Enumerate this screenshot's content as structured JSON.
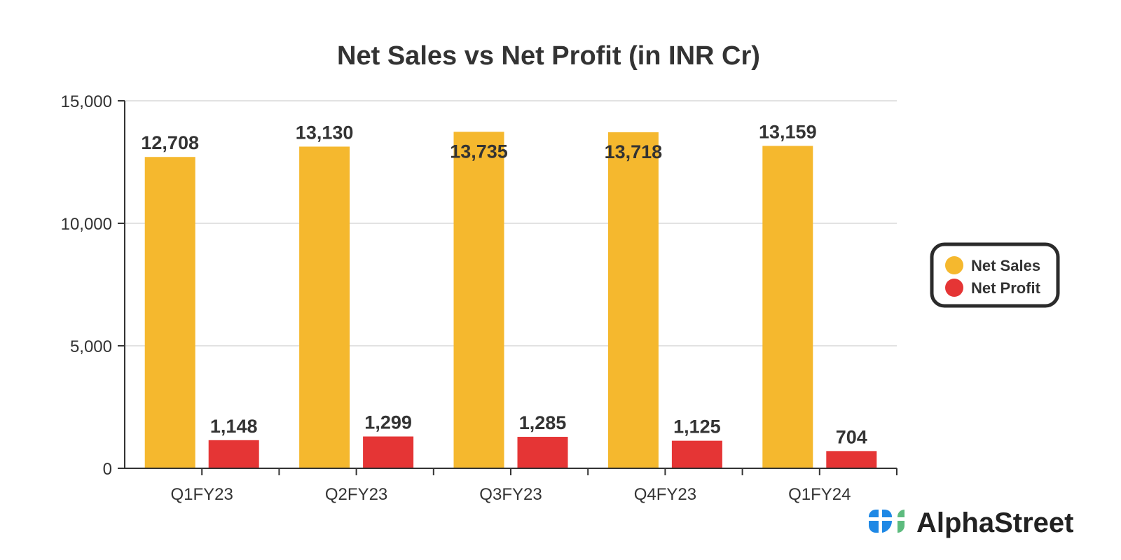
{
  "chart_data": {
    "type": "bar",
    "title": "Net Sales vs Net Profit (in INR Cr)",
    "xlabel": "",
    "ylabel": "",
    "ylim": [
      0,
      15000
    ],
    "yticks": [
      "0",
      "5,000",
      "10,000",
      "15,000"
    ],
    "ytick_values": [
      0,
      5000,
      10000,
      15000
    ],
    "grid": true,
    "legend_position": "right",
    "categories": [
      "Q1FY23",
      "Q2FY23",
      "Q3FY23",
      "Q4FY23",
      "Q1FY24"
    ],
    "series": [
      {
        "name": "Net Sales",
        "color": "#F5B82E",
        "values": [
          12708,
          13130,
          13735,
          13718,
          13159
        ],
        "labels": [
          "12,708",
          "13,130",
          "13,735",
          "13,718",
          "13,159"
        ]
      },
      {
        "name": "Net Profit",
        "color": "#E53535",
        "values": [
          1148,
          1299,
          1285,
          1125,
          704
        ],
        "labels": [
          "1,148",
          "1,299",
          "1,285",
          "1,125",
          "704"
        ]
      }
    ]
  },
  "branding": {
    "logo_text": "AlphaStreet"
  }
}
